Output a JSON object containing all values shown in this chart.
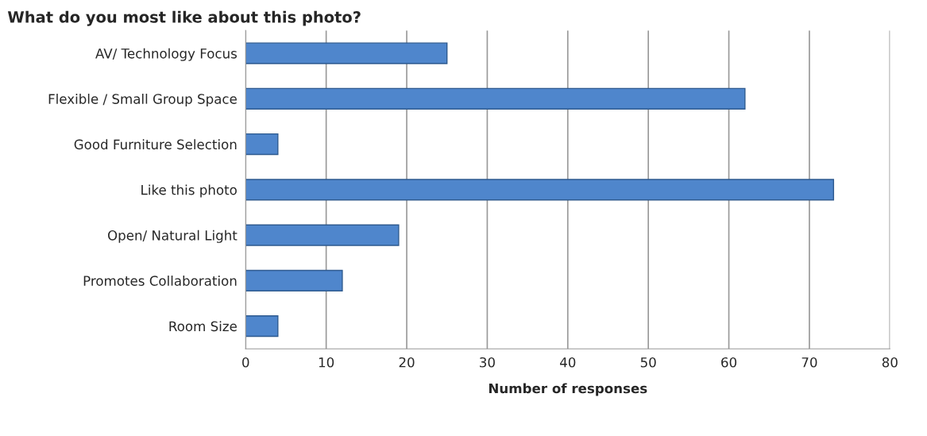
{
  "chart_data": {
    "type": "bar",
    "orientation": "horizontal",
    "title": "What do you most like about this photo?",
    "xlabel": "Number of responses",
    "categories": [
      "AV/ Technology Focus",
      "Flexible / Small Group Space",
      "Good Furniture Selection",
      "Like this photo",
      "Open/ Natural Light",
      "Promotes Collaboration",
      "Room Size"
    ],
    "values": [
      25,
      62,
      4,
      73,
      19,
      12,
      4
    ],
    "color": "#4f86cc",
    "xlim": [
      0,
      80
    ],
    "xticks": [
      0,
      10,
      20,
      30,
      40,
      50,
      60,
      70,
      80
    ],
    "grid": "x",
    "legend": false
  }
}
